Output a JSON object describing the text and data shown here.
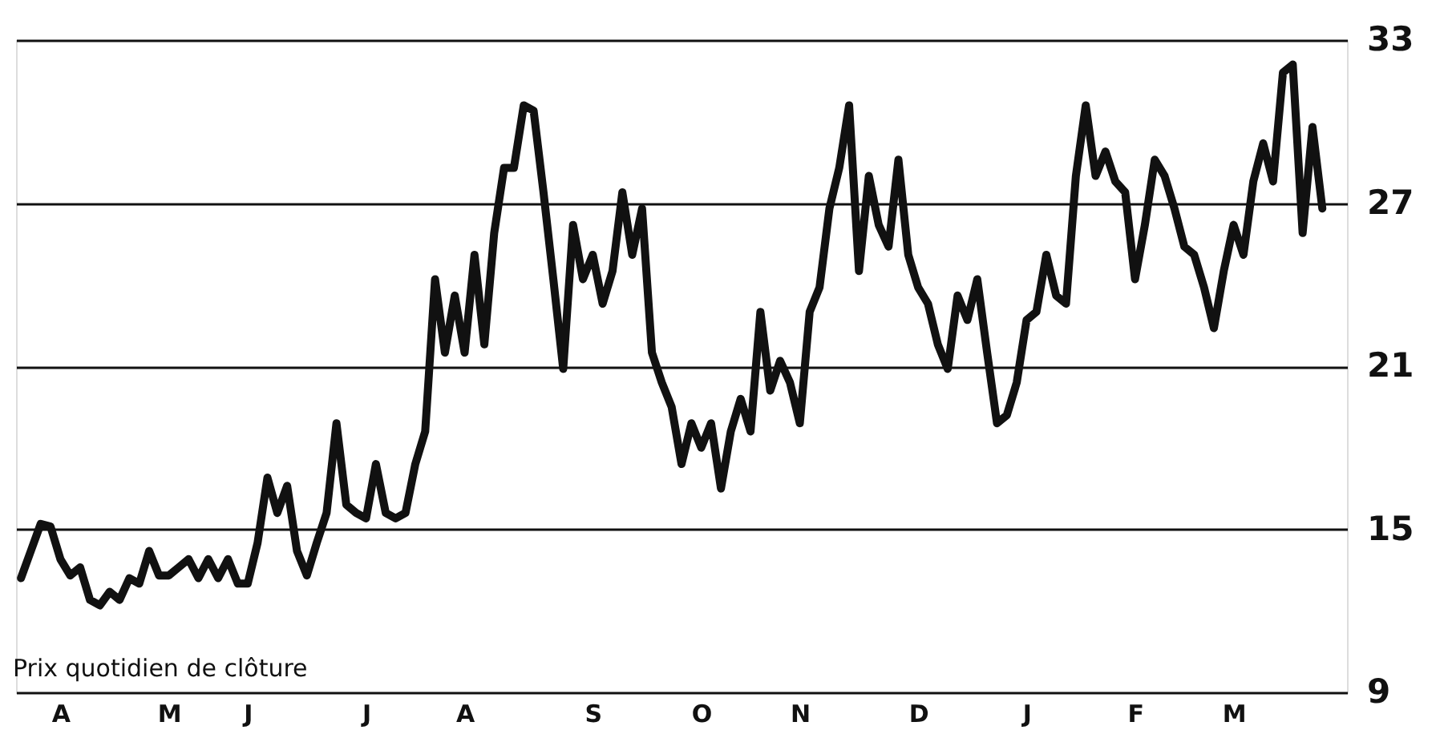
{
  "chart_data": {
    "type": "line",
    "annotations": [
      "Prix quotidien de clôture"
    ],
    "categories": [
      null,
      null,
      null,
      null,
      "A",
      null,
      null,
      null,
      null,
      null,
      null,
      null,
      null,
      null,
      null,
      "M",
      null,
      null,
      null,
      null,
      null,
      null,
      null,
      "J",
      null,
      null,
      null,
      null,
      null,
      null,
      null,
      null,
      null,
      null,
      null,
      "J",
      null,
      null,
      null,
      null,
      null,
      null,
      null,
      null,
      null,
      "A",
      null,
      null,
      null,
      null,
      null,
      null,
      null,
      null,
      null,
      null,
      null,
      null,
      "S",
      null,
      null,
      null,
      null,
      null,
      null,
      null,
      null,
      null,
      null,
      "O",
      null,
      null,
      null,
      null,
      null,
      null,
      null,
      null,
      null,
      "N",
      null,
      null,
      null,
      null,
      null,
      null,
      null,
      null,
      null,
      null,
      null,
      "D",
      null,
      null,
      null,
      null,
      null,
      null,
      null,
      null,
      null,
      null,
      "J",
      null,
      null,
      null,
      null,
      null,
      null,
      null,
      null,
      null,
      null,
      "F",
      null,
      null,
      null,
      null,
      null,
      null,
      null,
      null,
      null,
      "M",
      null,
      null,
      null,
      null,
      null,
      null,
      null,
      null,
      null
    ],
    "series": [
      {
        "color": "#111111",
        "values": [
          13.2,
          14.2,
          15.2,
          15.1,
          13.9,
          13.3,
          13.6,
          12.4,
          12.2,
          12.7,
          12.4,
          13.2,
          13.0,
          14.2,
          13.3,
          13.3,
          13.6,
          13.9,
          13.2,
          13.9,
          13.2,
          13.9,
          13.0,
          13.0,
          14.5,
          16.9,
          15.6,
          16.6,
          14.2,
          13.3,
          14.5,
          15.6,
          18.9,
          15.9,
          15.6,
          15.4,
          17.4,
          15.6,
          15.4,
          15.6,
          17.4,
          18.6,
          24.2,
          21.5,
          23.6,
          21.5,
          25.1,
          21.8,
          25.9,
          28.3,
          28.3,
          30.6,
          30.4,
          27.4,
          24.2,
          20.9,
          26.2,
          24.2,
          25.1,
          23.3,
          24.5,
          27.4,
          25.1,
          26.8,
          21.5,
          20.4,
          19.5,
          17.4,
          18.9,
          18.0,
          18.9,
          16.5,
          18.6,
          19.8,
          18.6,
          23.0,
          20.1,
          21.2,
          20.4,
          18.9,
          23.0,
          23.9,
          26.8,
          28.3,
          30.6,
          24.5,
          28.0,
          26.2,
          25.4,
          28.6,
          25.1,
          23.9,
          23.3,
          21.8,
          20.9,
          23.6,
          22.7,
          24.2,
          21.5,
          18.9,
          19.2,
          20.4,
          22.7,
          23.0,
          25.1,
          23.6,
          23.3,
          28.0,
          30.6,
          28.0,
          28.9,
          27.8,
          27.4,
          24.2,
          26.2,
          28.6,
          28.0,
          26.8,
          25.4,
          25.1,
          23.9,
          22.4,
          24.5,
          26.2,
          25.1,
          27.8,
          29.2,
          27.8,
          31.8,
          32.1,
          25.9,
          29.8,
          26.8
        ]
      }
    ],
    "ylim": [
      9,
      33
    ],
    "yticks": [
      9,
      15,
      21,
      27,
      33
    ],
    "grid": "y",
    "line_style": "solid",
    "marker": "none"
  }
}
